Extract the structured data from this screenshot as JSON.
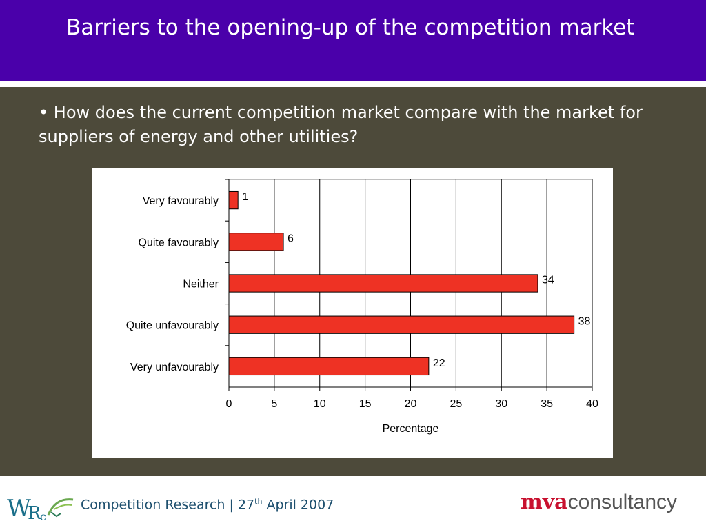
{
  "slide": {
    "title": "Barriers to the opening-up of the competition market",
    "question": "• How does the current competition market compare with the market for suppliers of energy and other utilities?"
  },
  "footer": {
    "text_before": "Competition Research | 27",
    "superscript": "th",
    "text_after": " April 2007",
    "left_logo_icon": "wrc-logo",
    "left_logo_text": "WRc",
    "right_logo_part1": "mva",
    "right_logo_part2": "consultancy"
  },
  "colors": {
    "title_bar": "#4a00aa",
    "content_bg": "#4d4a3a",
    "bar_fill": "#ee3224",
    "bar_stroke": "#000000",
    "footer_text": "#1d4f6e",
    "mva_red": "#c8102e"
  },
  "chart_data": {
    "type": "bar",
    "orientation": "horizontal",
    "categories": [
      "Very favourably",
      "Quite favourably",
      "Neither",
      "Quite unfavourably",
      "Very unfavourably"
    ],
    "values": [
      1,
      6,
      34,
      38,
      22
    ],
    "data_labels": [
      "1",
      "6",
      "34",
      "38",
      "22"
    ],
    "xlabel": "Percentage",
    "ylabel": "",
    "xlim": [
      0,
      40
    ],
    "xticks": [
      0,
      5,
      10,
      15,
      20,
      25,
      30,
      35,
      40
    ],
    "grid": "vertical",
    "legend": "none"
  }
}
